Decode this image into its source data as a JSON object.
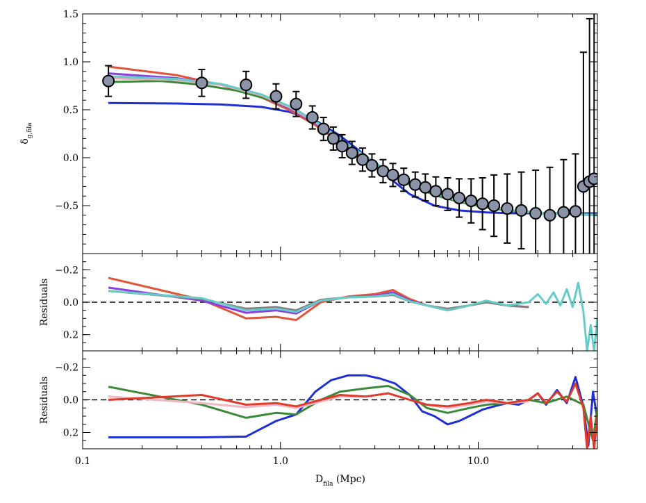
{
  "chart_data": [
    {
      "panel": "top",
      "type": "line",
      "ylabel_main": "δ",
      "ylabel_sub": "g,fila",
      "xscale": "log",
      "xlim": [
        0.1,
        40
      ],
      "ylim": [
        -1.0,
        1.5
      ],
      "yticks": [
        -0.5,
        0.0,
        0.5,
        1.0,
        1.5
      ],
      "ytick_labels": [
        "−0.5",
        "0.0",
        "0.5",
        "1.0",
        "1.5"
      ],
      "points": {
        "x": [
          0.135,
          0.4,
          0.67,
          0.95,
          1.2,
          1.45,
          1.65,
          1.85,
          2.05,
          2.3,
          2.6,
          2.9,
          3.3,
          3.7,
          4.2,
          4.8,
          5.4,
          6.1,
          7.0,
          8.0,
          9.2,
          10.5,
          12.0,
          14.0,
          16.5,
          19.5,
          23.0,
          27.0,
          31.0,
          34.0,
          36.5,
          38.5
        ],
        "y": [
          0.8,
          0.78,
          0.76,
          0.64,
          0.56,
          0.42,
          0.3,
          0.2,
          0.12,
          0.05,
          -0.02,
          -0.08,
          -0.14,
          -0.18,
          -0.23,
          -0.28,
          -0.31,
          -0.35,
          -0.38,
          -0.42,
          -0.45,
          -0.48,
          -0.5,
          -0.53,
          -0.55,
          -0.58,
          -0.6,
          -0.57,
          -0.56,
          -0.3,
          -0.25,
          -0.22
        ],
        "err": [
          0.16,
          0.14,
          0.14,
          0.13,
          0.13,
          0.12,
          0.12,
          0.12,
          0.12,
          0.12,
          0.12,
          0.12,
          0.12,
          0.12,
          0.12,
          0.13,
          0.14,
          0.15,
          0.17,
          0.2,
          0.23,
          0.27,
          0.32,
          0.36,
          0.4,
          0.45,
          0.5,
          0.55,
          0.6,
          1.4,
          1.7,
          2.0
        ]
      },
      "series": [
        {
          "color": "#1f2fd6",
          "x": [
            0.135,
            0.3,
            0.5,
            0.8,
            1.1,
            1.5,
            2.0,
            2.7,
            3.5,
            4.5,
            6.0,
            8.0,
            11.0,
            15.0,
            22.0,
            40.0
          ],
          "y": [
            0.57,
            0.565,
            0.555,
            0.53,
            0.48,
            0.39,
            0.23,
            0.02,
            -0.2,
            -0.38,
            -0.5,
            -0.55,
            -0.57,
            -0.58,
            -0.58,
            -0.58
          ]
        },
        {
          "color": "#e0543a",
          "x": [
            0.135,
            0.3,
            0.5,
            0.8,
            1.1,
            1.5,
            2.0,
            2.7,
            3.5,
            4.5,
            6.0,
            8.0,
            11.0,
            15.0,
            22.0,
            40.0
          ],
          "y": [
            0.95,
            0.86,
            0.76,
            0.63,
            0.5,
            0.34,
            0.16,
            -0.02,
            -0.16,
            -0.27,
            -0.37,
            -0.44,
            -0.5,
            -0.55,
            -0.58,
            -0.6
          ]
        },
        {
          "color": "#8a3fe0",
          "x": [
            0.135,
            0.3,
            0.5,
            0.8,
            1.1,
            1.5,
            2.0,
            2.7,
            3.5,
            4.5,
            6.0,
            8.0,
            11.0,
            15.0,
            22.0,
            40.0
          ],
          "y": [
            0.88,
            0.83,
            0.76,
            0.64,
            0.52,
            0.36,
            0.18,
            0.0,
            -0.15,
            -0.26,
            -0.37,
            -0.45,
            -0.51,
            -0.55,
            -0.58,
            -0.6
          ]
        },
        {
          "color": "#3a8a3a",
          "x": [
            0.135,
            0.25,
            0.4,
            0.6,
            0.9,
            1.2,
            1.6,
            2.1,
            2.8,
            3.6,
            4.6,
            6.0,
            8.0,
            11.0,
            15.0,
            22.0,
            40.0
          ],
          "y": [
            0.79,
            0.8,
            0.76,
            0.7,
            0.6,
            0.5,
            0.34,
            0.16,
            -0.03,
            -0.17,
            -0.29,
            -0.39,
            -0.46,
            -0.52,
            -0.56,
            -0.58,
            -0.59
          ]
        },
        {
          "color": "#e8a8b8",
          "x": [
            0.135,
            0.3,
            0.5,
            0.8,
            1.1,
            1.5,
            2.0,
            2.7,
            3.5,
            4.5,
            6.0,
            8.0,
            11.0,
            15.0,
            22.0,
            40.0
          ],
          "y": [
            0.83,
            0.81,
            0.76,
            0.65,
            0.53,
            0.37,
            0.19,
            0.0,
            -0.15,
            -0.26,
            -0.37,
            -0.45,
            -0.51,
            -0.55,
            -0.58,
            -0.6
          ]
        },
        {
          "color": "#66ccc8",
          "x": [
            0.135,
            0.3,
            0.5,
            0.8,
            1.1,
            1.5,
            2.0,
            2.7,
            3.5,
            4.5,
            6.0,
            8.0,
            11.0,
            15.0,
            22.0,
            40.0
          ],
          "y": [
            0.85,
            0.82,
            0.77,
            0.66,
            0.54,
            0.38,
            0.2,
            0.01,
            -0.14,
            -0.26,
            -0.37,
            -0.45,
            -0.51,
            -0.55,
            -0.58,
            -0.6
          ]
        }
      ]
    },
    {
      "panel": "middle",
      "type": "line",
      "ylabel": "Residuals",
      "xscale": "log",
      "xlim": [
        0.1,
        40
      ],
      "ylim": [
        0.3,
        -0.3
      ],
      "yticks": [
        -0.2,
        0.0,
        0.2
      ],
      "ytick_labels": [
        "−0.2",
        "0.0",
        "0.2"
      ],
      "reference_line": 0.0,
      "series": [
        {
          "color": "#e0543a",
          "x": [
            0.135,
            0.4,
            0.67,
            0.95,
            1.2,
            1.6,
            2.2,
            3.0,
            3.7,
            4.5,
            5.5,
            7.0,
            9.0,
            11.0,
            14.0,
            18.0
          ],
          "y": [
            -0.15,
            -0.015,
            0.1,
            0.09,
            0.11,
            0.0,
            -0.035,
            -0.05,
            -0.075,
            -0.02,
            0.02,
            0.05,
            0.02,
            0.0,
            0.02,
            0.03
          ]
        },
        {
          "color": "#8a3fe0",
          "x": [
            0.135,
            0.4,
            0.67,
            0.95,
            1.2,
            1.6,
            2.2,
            3.0,
            3.7,
            4.5,
            5.5,
            7.0,
            9.0,
            11.0,
            14.0,
            18.0
          ],
          "y": [
            -0.09,
            -0.01,
            0.065,
            0.05,
            0.07,
            -0.01,
            -0.03,
            -0.04,
            -0.06,
            -0.01,
            0.02,
            0.05,
            0.02,
            0.0,
            0.02,
            0.03
          ]
        },
        {
          "color": "#808080",
          "x": [
            0.135,
            0.4,
            0.67,
            0.95,
            1.2,
            1.6,
            2.2,
            3.0,
            3.7,
            4.5,
            5.5,
            7.0,
            9.0,
            11.0,
            14.0,
            18.0
          ],
          "y": [
            -0.07,
            -0.02,
            0.04,
            0.03,
            0.05,
            -0.015,
            -0.03,
            -0.035,
            -0.045,
            -0.005,
            0.02,
            0.04,
            0.02,
            0.0,
            0.02,
            0.03
          ]
        },
        {
          "color": "#66ccc8",
          "x": [
            0.135,
            0.4,
            0.67,
            0.95,
            1.2,
            1.6,
            2.2,
            3.0,
            3.7,
            4.5,
            5.5,
            7.0,
            9.0,
            11.0,
            14.0,
            18.0,
            20.0,
            22.0,
            24.0,
            26.0,
            28.0,
            30.0,
            32.0,
            34.0,
            35.5,
            37.0,
            38.5,
            40.0
          ],
          "y": [
            -0.07,
            -0.025,
            0.05,
            0.04,
            0.06,
            -0.01,
            -0.03,
            -0.035,
            -0.05,
            -0.005,
            0.02,
            0.05,
            0.02,
            -0.01,
            0.02,
            0.0,
            -0.05,
            0.01,
            -0.06,
            0.02,
            -0.08,
            0.03,
            -0.12,
            0.06,
            0.3,
            0.14,
            0.3,
            0.1
          ]
        }
      ]
    },
    {
      "panel": "bottom",
      "type": "line",
      "ylabel": "Residuals",
      "xlabel_main": "D",
      "xlabel_sub": "fila",
      "xlabel_tail": " (Mpc)",
      "xscale": "log",
      "xlim": [
        0.1,
        40
      ],
      "ylim": [
        0.3,
        -0.3
      ],
      "yticks": [
        -0.2,
        0.0,
        0.2
      ],
      "ytick_labels": [
        "−0.2",
        "0.0",
        "0.2"
      ],
      "xticks": [
        0.1,
        1.0,
        10.0
      ],
      "xtick_labels": [
        "0.1",
        "1.0",
        "10.0"
      ],
      "reference_line": 0.0,
      "series": [
        {
          "color": "#1f2fd6",
          "x": [
            0.135,
            0.4,
            0.67,
            0.95,
            1.2,
            1.5,
            1.8,
            2.2,
            2.7,
            3.2,
            3.8,
            4.5,
            5.2,
            6.0,
            7.0,
            8.0,
            9.0,
            10.5,
            12.0,
            14.0,
            16.0,
            18.0,
            20.0,
            22.0,
            25.0,
            28.0,
            31.0,
            34.0,
            36.0,
            38.0,
            40.0
          ],
          "y": [
            0.23,
            0.23,
            0.225,
            0.13,
            0.09,
            -0.05,
            -0.12,
            -0.15,
            -0.15,
            -0.13,
            -0.1,
            -0.03,
            0.07,
            0.1,
            0.15,
            0.13,
            0.1,
            0.06,
            0.04,
            0.02,
            0.03,
            0.0,
            -0.04,
            0.03,
            -0.06,
            0.02,
            -0.14,
            0.04,
            0.28,
            -0.05,
            0.12
          ]
        },
        {
          "color": "#3a8a3a",
          "x": [
            0.135,
            0.4,
            0.67,
            0.95,
            1.2,
            1.6,
            2.0,
            2.7,
            3.5,
            4.5,
            5.5,
            7.0,
            9.0,
            11.0,
            14.0,
            18.0,
            22.0,
            28.0,
            34.0,
            38.0,
            40.0
          ],
          "y": [
            -0.08,
            0.03,
            0.11,
            0.08,
            0.09,
            0.0,
            -0.05,
            -0.07,
            -0.085,
            -0.03,
            0.05,
            0.08,
            0.05,
            0.03,
            0.02,
            0.0,
            0.02,
            -0.02,
            0.03,
            0.25,
            0.05
          ]
        },
        {
          "color": "#f0b8c4",
          "x": [
            0.135,
            0.4,
            0.67,
            0.95,
            1.2,
            1.6,
            2.0,
            2.7,
            3.5,
            4.5,
            5.5,
            7.0,
            9.0,
            11.0,
            14.0,
            18.0
          ],
          "y": [
            -0.02,
            0.02,
            0.045,
            0.03,
            0.05,
            0.01,
            -0.02,
            -0.02,
            -0.04,
            0.0,
            0.03,
            0.05,
            0.03,
            0.01,
            0.02,
            0.01
          ]
        },
        {
          "color": "#e03a2a",
          "x": [
            0.135,
            0.4,
            0.67,
            0.95,
            1.2,
            1.6,
            2.0,
            2.7,
            3.5,
            4.5,
            5.5,
            7.0,
            9.0,
            11.0,
            14.0,
            18.0,
            20.0,
            22.0,
            25.0,
            28.0,
            31.0,
            34.0,
            35.5,
            37.0,
            38.5,
            40.0
          ],
          "y": [
            0.0,
            -0.03,
            0.03,
            0.02,
            0.04,
            0.0,
            -0.03,
            -0.02,
            -0.04,
            0.0,
            0.03,
            0.04,
            0.02,
            0.0,
            0.02,
            0.0,
            -0.04,
            0.02,
            -0.05,
            0.01,
            -0.1,
            0.05,
            0.3,
            0.1,
            0.3,
            0.1
          ]
        }
      ]
    }
  ]
}
